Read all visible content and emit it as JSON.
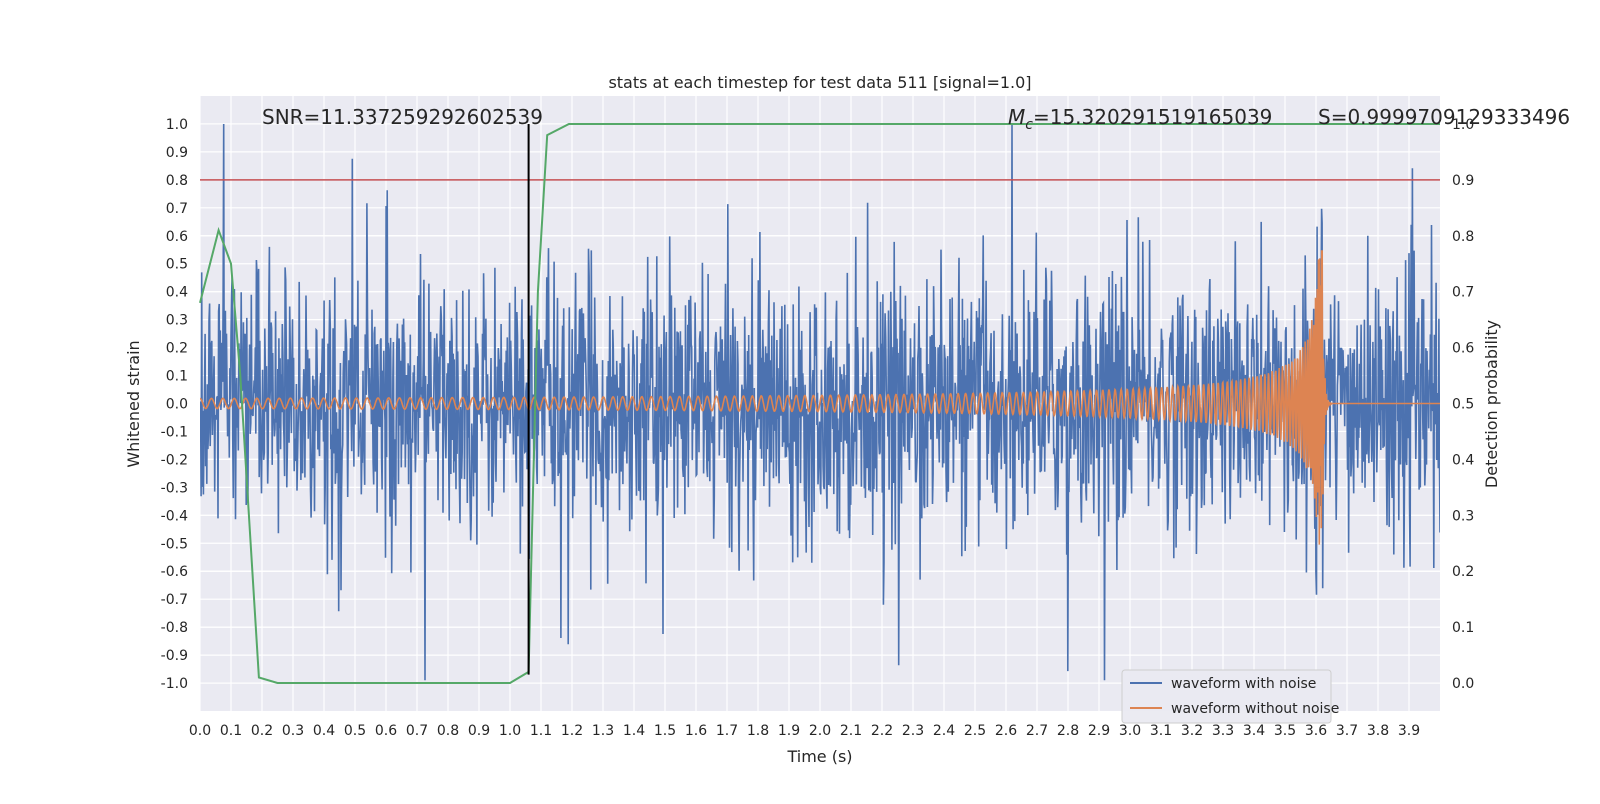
{
  "chart_data": {
    "type": "line",
    "title": "stats at each timestep for test data 511 [signal=1.0]",
    "xlabel": "Time (s)",
    "ylabel": "Whitened strain",
    "y2label": "Detection probability",
    "xlim": [
      0.0,
      4.0
    ],
    "ylim": [
      -1.1,
      1.1
    ],
    "y2lim": [
      -0.05,
      1.05
    ],
    "grid": true,
    "legend_position": "lower-right",
    "x_ticks": [
      "0.0",
      "0.1",
      "0.2",
      "0.3",
      "0.4",
      "0.5",
      "0.6",
      "0.7",
      "0.8",
      "0.9",
      "1.0",
      "1.1",
      "1.2",
      "1.3",
      "1.4",
      "1.5",
      "1.6",
      "1.7",
      "1.8",
      "1.9",
      "2.0",
      "2.1",
      "2.2",
      "2.3",
      "2.4",
      "2.5",
      "2.6",
      "2.7",
      "2.8",
      "2.9",
      "3.0",
      "3.1",
      "3.2",
      "3.3",
      "3.4",
      "3.5",
      "3.6",
      "3.7",
      "3.8",
      "3.9"
    ],
    "y_ticks": [
      "1.0",
      "0.9",
      "0.8",
      "0.7",
      "0.6",
      "0.5",
      "0.4",
      "0.3",
      "0.2",
      "0.1",
      "0.0",
      "-0.1",
      "-0.2",
      "-0.3",
      "-0.4",
      "-0.5",
      "-0.6",
      "-0.7",
      "-0.8",
      "-0.9",
      "-1.0"
    ],
    "y2_ticks": [
      "1.0",
      "0.9",
      "0.8",
      "0.7",
      "0.6",
      "0.5",
      "0.4",
      "0.3",
      "0.2",
      "0.1",
      "0.0"
    ],
    "annotations": {
      "snr": "SNR=11.337259292602539",
      "mc_symbol": "M",
      "mc_sub": "c",
      "mc_value": "=15.320291519165039",
      "s": "S=0.9999709129333496"
    },
    "series": [
      {
        "name": "waveform with noise",
        "axis": "left",
        "color": "#4c72b0",
        "kind": "noise",
        "amplitude_sigma": 0.22
      },
      {
        "name": "waveform without noise",
        "axis": "left",
        "color": "#dd8452",
        "kind": "chirp",
        "merger_time": 3.62,
        "end_time": 3.65,
        "peak": 0.58
      },
      {
        "name": "detection probability",
        "axis": "right",
        "color": "#55a868",
        "x": [
          0.0,
          0.06,
          0.1,
          0.13,
          0.19,
          0.25,
          1.0,
          1.06,
          1.09,
          1.12,
          1.19,
          4.0
        ],
        "y": [
          0.68,
          0.81,
          0.75,
          0.55,
          0.01,
          0.0,
          0.0,
          0.02,
          0.7,
          0.98,
          1.0,
          1.0
        ]
      }
    ],
    "threshold_line": {
      "axis": "right",
      "value": 0.9,
      "color": "#c44e52"
    },
    "marker_line": {
      "x": 1.06,
      "y_from": -0.97,
      "y_to": 1.0,
      "color": "#000000"
    }
  },
  "legend": {
    "noise_label": "waveform with noise",
    "clean_label": "waveform without noise"
  }
}
